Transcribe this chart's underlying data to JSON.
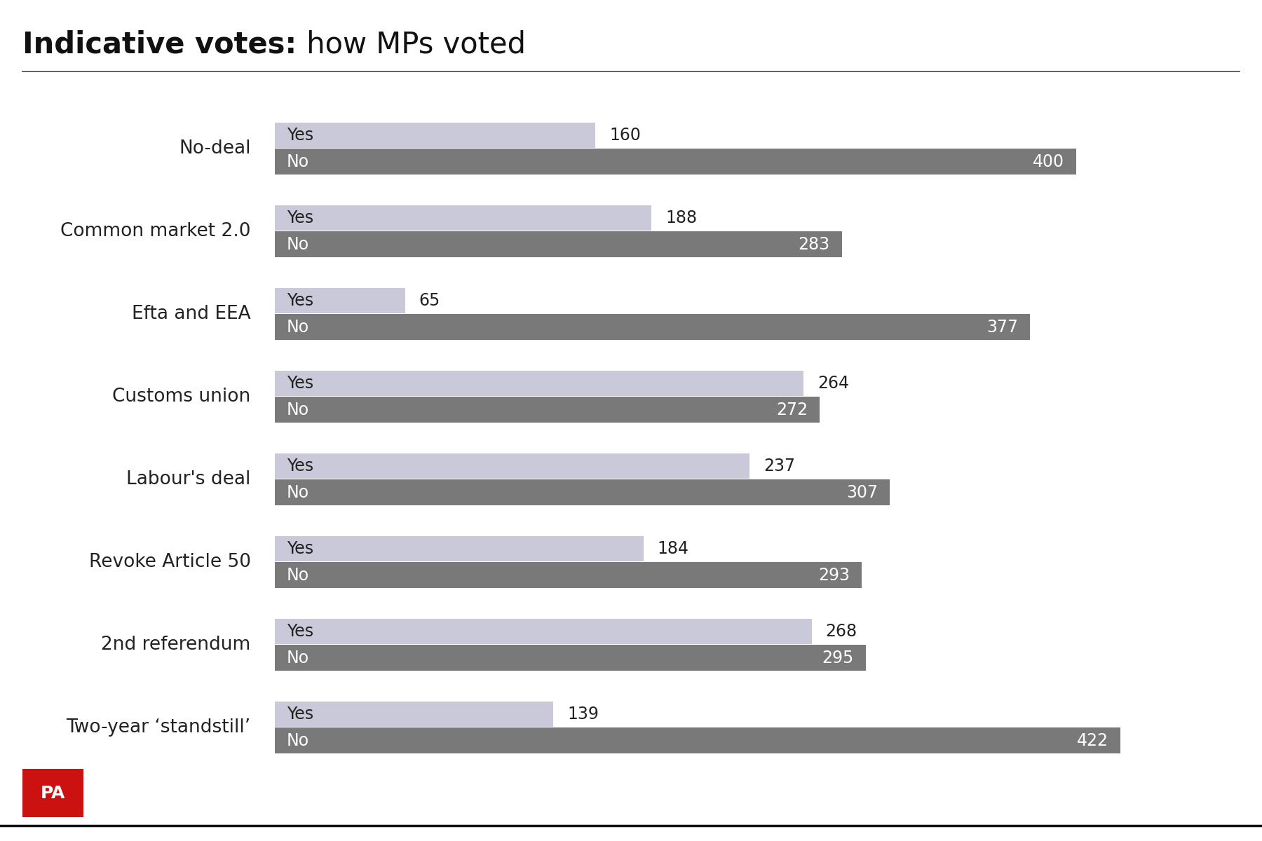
{
  "title_bold": "Indicative votes:",
  "title_regular": " how MPs voted",
  "categories": [
    "No-deal",
    "Common market 2.0",
    "Efta and EEA",
    "Customs union",
    "Labour's deal",
    "Revoke Article 50",
    "2nd referendum",
    "Two-year ‘standstill’"
  ],
  "yes_values": [
    160,
    188,
    65,
    264,
    237,
    184,
    268,
    139
  ],
  "no_values": [
    400,
    283,
    377,
    272,
    307,
    293,
    295,
    422
  ],
  "yes_color": "#c9c9d9",
  "no_color": "#797979",
  "yes_label_color": "#222222",
  "no_label_color": "#ffffff",
  "background_color": "#ffffff",
  "max_value": 422,
  "title_fontsize": 30,
  "label_fontsize": 17,
  "category_fontsize": 19,
  "value_fontsize": 17,
  "pa_box_color": "#cc1111",
  "pa_text_color": "#ffffff"
}
